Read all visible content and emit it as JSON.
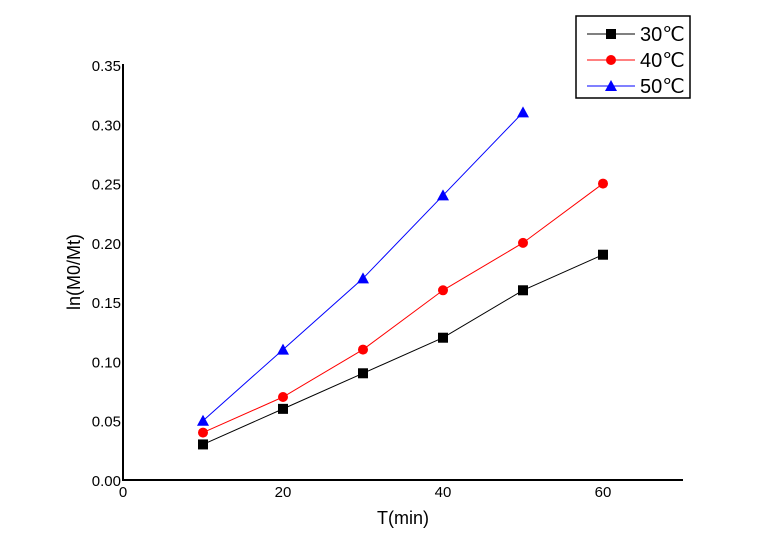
{
  "chart_data": {
    "type": "line",
    "title": "",
    "xlabel": "T(min)",
    "ylabel": "ln(M0/Mt)",
    "xlim": [
      0,
      70
    ],
    "ylim": [
      0,
      0.35
    ],
    "xticks": [
      0,
      20,
      40,
      60
    ],
    "xtick_labels": [
      "0",
      "20",
      "40",
      "60"
    ],
    "yticks": [
      0,
      0.05,
      0.1,
      0.15,
      0.2,
      0.25,
      0.3,
      0.35
    ],
    "ytick_labels": [
      "0.00",
      "0.05",
      "0.10",
      "0.15",
      "0.20",
      "0.25",
      "0.30",
      "0.35"
    ],
    "grid": false,
    "legend_position": "top-right",
    "series": [
      {
        "name": "30℃",
        "color": "#000000",
        "marker": "square",
        "x": [
          10,
          20,
          30,
          40,
          50,
          60
        ],
        "values": [
          0.03,
          0.06,
          0.09,
          0.12,
          0.16,
          0.19
        ]
      },
      {
        "name": "40℃",
        "color": "#ff0000",
        "marker": "circle",
        "x": [
          10,
          20,
          30,
          40,
          50,
          60
        ],
        "values": [
          0.04,
          0.07,
          0.11,
          0.16,
          0.2,
          0.25
        ]
      },
      {
        "name": "50℃",
        "color": "#0000ff",
        "marker": "triangle",
        "x": [
          10,
          20,
          30,
          40,
          50
        ],
        "values": [
          0.05,
          0.11,
          0.17,
          0.24,
          0.31
        ]
      }
    ]
  }
}
